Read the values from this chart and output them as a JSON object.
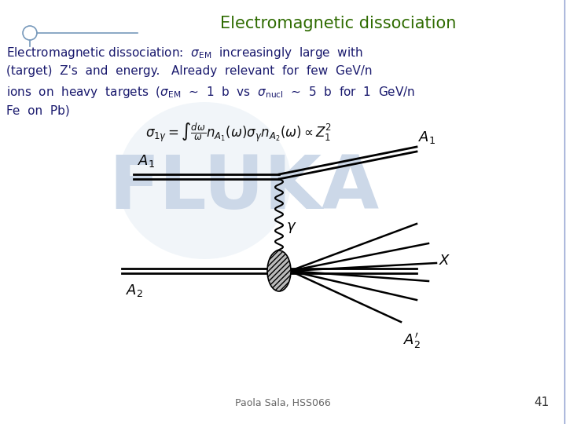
{
  "title": "Electromagnetic dissociation",
  "title_color": "#2e6b00",
  "title_fontsize": 15,
  "background_color": "#ffffff",
  "slide_number": "41",
  "footer_text": "Paola Sala, HSS066",
  "header_line_color": "#7799bb",
  "nav_circle_color": "#7799bb",
  "text_color": "#1a1a6e",
  "fluka_color": "#ccd8e8",
  "diagram_color": "#000000",
  "blob_color": "#aaaaaa",
  "border_color": "#8899cc"
}
